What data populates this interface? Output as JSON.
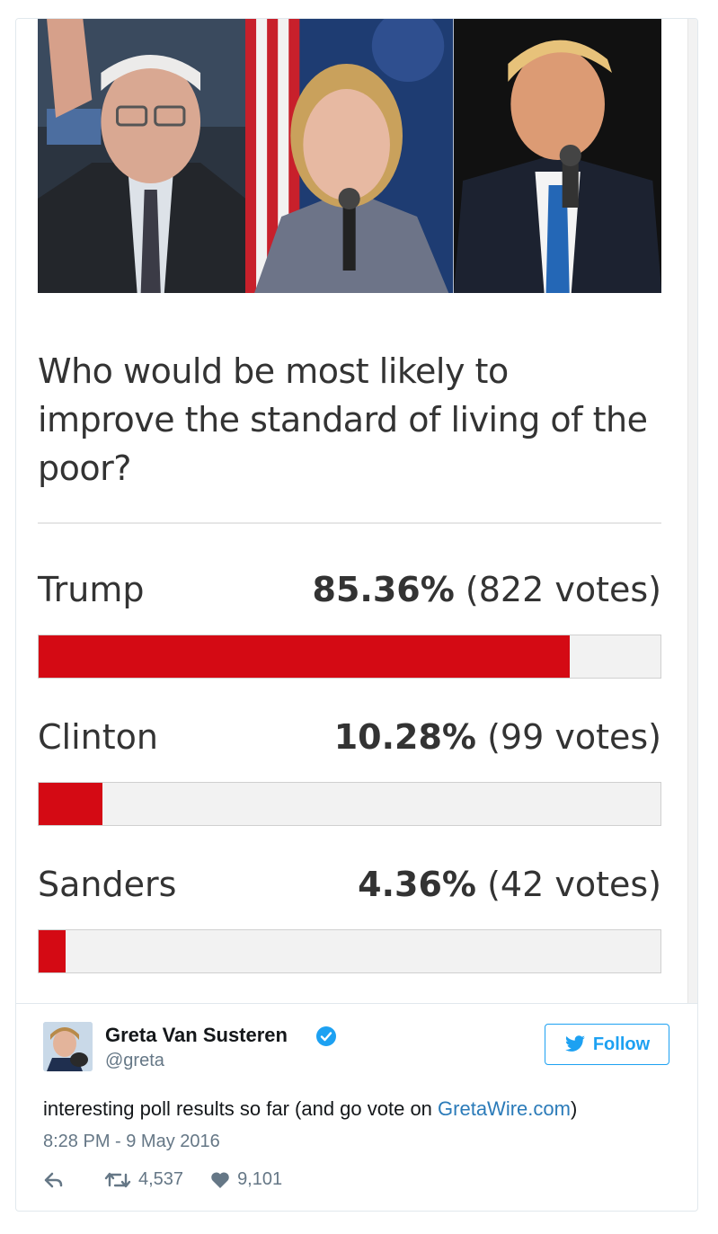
{
  "poll": {
    "question": "Who would be most likely to improve the standard of living of the poor?",
    "options": [
      {
        "name": "Trump",
        "percent": "85.36%",
        "votes": "(822 votes)",
        "fill_fraction": 0.8536
      },
      {
        "name": "Clinton",
        "percent": "10.28%",
        "votes": "(99 votes)",
        "fill_fraction": 0.1028
      },
      {
        "name": "Sanders",
        "percent": "4.36%",
        "votes": "(42 votes)",
        "fill_fraction": 0.0436
      }
    ],
    "bar_color": "#d40a14",
    "photos": [
      "candidate-photo-left",
      "candidate-photo-center",
      "candidate-photo-right"
    ]
  },
  "tweet": {
    "display_name": "Greta Van Susteren",
    "handle": "@greta",
    "follow_label": "Follow",
    "text_before_link": "interesting poll results so far (and go vote on ",
    "link_text": "GretaWire.com",
    "text_after_link": ")",
    "timestamp": "8:28 PM - 9 May 2016",
    "retweets": "4,537",
    "likes": "9,101",
    "accent_color": "#1da1f2"
  }
}
